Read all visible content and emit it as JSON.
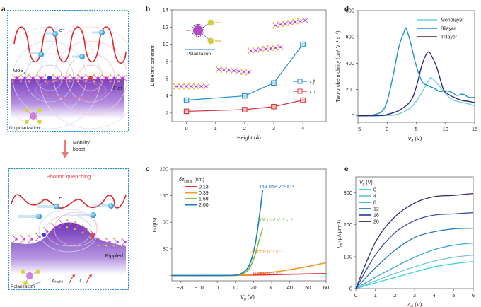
{
  "panel_a": {
    "letter": "a",
    "top": {
      "electron_label": "e⁻",
      "material_label": "MoS",
      "material_sub": "2",
      "substrate_label": "Flat",
      "polarization_label": "No polarization"
    },
    "arrow": {
      "line1": "Mobility",
      "line2": "boost"
    },
    "bottom": {
      "title": "Phonon quenching",
      "electron_label": "e⁻",
      "substrate_label": "Rippled",
      "polarization_label": "Polarization",
      "eps_label": "ε",
      "eps_sub": "MoS2",
      "tau_label": "τ"
    },
    "colors": {
      "wave": "#e0262b",
      "electron": "#3aa7e0",
      "substrate": "#8a55c4",
      "border": "#2f8fd0"
    }
  },
  "chart_data": [
    {
      "panel": "b",
      "type": "line",
      "title": "",
      "xlabel": "Height (Å)",
      "ylabel": "Dielectric constant",
      "xlim": [
        -0.5,
        4.8
      ],
      "ylim": [
        1,
        14
      ],
      "xticks": [
        0,
        1,
        2,
        3,
        4
      ],
      "yticks": [
        2,
        4,
        6,
        8,
        10,
        12,
        14
      ],
      "inset_label": "Polarization",
      "legend_position": "right",
      "series": [
        {
          "name": "ε∥",
          "color": "#1f8fcf",
          "x": [
            0,
            2,
            3,
            4
          ],
          "y": [
            3.5,
            4.0,
            5.5,
            10.0
          ]
        },
        {
          "name": "ε⊥",
          "color": "#d8353a",
          "x": [
            0,
            2,
            3,
            4
          ],
          "y": [
            2.2,
            2.4,
            2.75,
            3.5
          ]
        }
      ]
    },
    {
      "panel": "c",
      "type": "line",
      "xlabel": "V",
      "xlabel_sub": "g",
      "xlabel_unit": " (V)",
      "ylabel": "G (μS)",
      "xlim": [
        -25,
        60
      ],
      "ylim": [
        -10,
        200
      ],
      "xticks": [
        -20,
        -10,
        0,
        10,
        20,
        30,
        40,
        50,
        60
      ],
      "yticks": [
        0,
        50,
        100,
        150,
        200
      ],
      "legend_title": "δz",
      "legend_title_sub": "r.m.s.",
      "legend_title_unit": " (nm)",
      "legend_position": "top-left",
      "series": [
        {
          "name": "0.13",
          "color": "#e8323a",
          "annotation": "9 cm² V⁻¹ s⁻¹",
          "x": [
            -25,
            0,
            10,
            20,
            30,
            40,
            50,
            60
          ],
          "y": [
            0,
            0,
            0.2,
            0.8,
            1.5,
            2.2,
            3.0,
            3.5
          ]
        },
        {
          "name": "0.39",
          "color": "#f39a2a",
          "annotation": "29 cm² V⁻¹ s⁻¹",
          "x": [
            -25,
            0,
            10,
            15,
            20,
            30,
            40,
            50,
            60
          ],
          "y": [
            0,
            0,
            0.3,
            1,
            2.5,
            6,
            11,
            17,
            24
          ]
        },
        {
          "name": "1.69",
          "color": "#7fc241",
          "annotation": "268 cm² V⁻¹ s⁻¹",
          "x": [
            -25,
            0,
            10,
            14,
            17,
            19,
            21,
            23,
            25
          ],
          "y": [
            0,
            0,
            0.5,
            3,
            10,
            22,
            40,
            65,
            88
          ]
        },
        {
          "name": "2.00",
          "color": "#1b79c0",
          "annotation": "448 cm² V⁻¹ s⁻¹",
          "x": [
            -25,
            0,
            10,
            14,
            17,
            19,
            21,
            23,
            25
          ],
          "y": [
            0,
            0,
            0.8,
            5,
            15,
            32,
            60,
            105,
            160
          ]
        }
      ]
    },
    {
      "panel": "d",
      "type": "line",
      "xlabel": "V",
      "xlabel_sub": "g",
      "xlabel_unit": " (V)",
      "ylabel": "Two-probe mobility (cm² V⁻¹ s⁻¹)",
      "xlim": [
        -5,
        15
      ],
      "ylim": [
        -50,
        800
      ],
      "xticks": [
        -5,
        0,
        5,
        10,
        15
      ],
      "yticks": [
        0,
        200,
        400,
        600,
        800
      ],
      "legend_position": "top-right",
      "series": [
        {
          "name": "Monolayer",
          "color": "#6fd0dc",
          "x": [
            -5,
            0,
            2,
            4,
            5,
            6,
            7,
            7.5,
            8.5,
            10,
            11,
            12,
            13,
            14,
            15
          ],
          "y": [
            0,
            2,
            15,
            60,
            110,
            180,
            260,
            290,
            250,
            170,
            125,
            110,
            100,
            90,
            75
          ]
        },
        {
          "name": "Bilayer",
          "color": "#1f8fd0",
          "x": [
            -5,
            -3,
            -1,
            0,
            1,
            2,
            3,
            3.3,
            4,
            5,
            6,
            7,
            8,
            9,
            10,
            11,
            12,
            13,
            14,
            15
          ],
          "y": [
            0,
            2,
            30,
            110,
            300,
            520,
            650,
            660,
            560,
            380,
            260,
            230,
            210,
            185,
            190,
            180,
            155,
            165,
            140,
            140
          ]
        },
        {
          "name": "Trilayer",
          "color": "#2e2a78",
          "x": [
            -5,
            -1,
            0,
            2,
            4,
            5,
            6,
            7,
            7.8,
            8.5,
            9.5,
            10,
            11,
            12,
            13,
            14,
            15
          ],
          "y": [
            0,
            2,
            10,
            40,
            110,
            220,
            390,
            485,
            440,
            370,
            220,
            180,
            150,
            130,
            115,
            110,
            100
          ]
        }
      ]
    },
    {
      "panel": "e",
      "type": "line",
      "xlabel": "V",
      "xlabel_sub": "sd",
      "xlabel_unit": " (V)",
      "ylabel": "I",
      "ylabel_sub": "ds",
      "ylabel_unit": " (μA μm⁻¹)",
      "xlim": [
        0,
        6
      ],
      "ylim": [
        0,
        350
      ],
      "xticks": [
        0,
        1,
        2,
        3,
        4,
        5,
        6
      ],
      "yticks": [
        0,
        100,
        200,
        300
      ],
      "legend_title": "V",
      "legend_title_sub": "g",
      "legend_title_unit": " (V)",
      "legend_position": "top-left",
      "series": [
        {
          "name": "0",
          "color": "#36d6e8",
          "x": [
            0,
            1,
            2,
            3,
            4,
            5,
            6
          ],
          "y": [
            0,
            18,
            35,
            52,
            68,
            78,
            85
          ]
        },
        {
          "name": "4",
          "color": "#77c7d6",
          "x": [
            0,
            1,
            2,
            3,
            4,
            5,
            6
          ],
          "y": [
            0,
            24,
            47,
            68,
            86,
            98,
            105
          ]
        },
        {
          "name": "8",
          "color": "#3aa8e0",
          "x": [
            0,
            1,
            2,
            3,
            4,
            5,
            6
          ],
          "y": [
            0,
            35,
            68,
            98,
            122,
            136,
            143
          ]
        },
        {
          "name": "12",
          "color": "#1e79bd",
          "x": [
            0,
            1,
            2,
            3,
            4,
            5,
            6
          ],
          "y": [
            0,
            65,
            120,
            160,
            178,
            187,
            189
          ]
        },
        {
          "name": "16",
          "color": "#3d4fa8",
          "x": [
            0,
            1,
            2,
            3,
            4,
            5,
            6
          ],
          "y": [
            0,
            105,
            175,
            213,
            230,
            234,
            238
          ]
        },
        {
          "name": "20",
          "color": "#2a2a6e",
          "x": [
            0,
            1,
            2,
            3,
            4,
            5,
            6
          ],
          "y": [
            0,
            145,
            225,
            268,
            288,
            292,
            298
          ]
        }
      ]
    }
  ]
}
